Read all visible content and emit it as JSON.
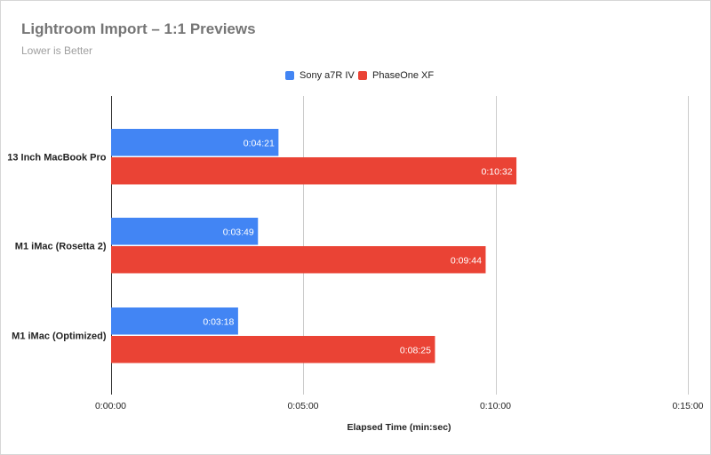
{
  "chart_data": {
    "type": "bar",
    "orientation": "horizontal",
    "title": "Lightroom Import – 1:1 Previews",
    "subtitle": "Lower is Better",
    "xlabel": "Elapsed Time (min:sec)",
    "ylabel": "",
    "categories": [
      "13 Inch MacBook Pro",
      "M1 iMac (Rosetta 2)",
      "M1 iMac (Optimized)"
    ],
    "series": [
      {
        "name": "Sony a7R IV",
        "color": "#4285f4",
        "values_seconds": [
          261,
          229,
          198
        ],
        "labels": [
          "0:04:21",
          "0:03:49",
          "0:03:18"
        ]
      },
      {
        "name": "PhaseOne XF",
        "color": "#ea4335",
        "values_seconds": [
          632,
          584,
          505
        ],
        "labels": [
          "0:10:32",
          "0:09:44",
          "0:08:25"
        ]
      }
    ],
    "x_range_seconds": [
      0,
      900
    ],
    "x_ticks_seconds": [
      0,
      300,
      600,
      900
    ],
    "x_tick_labels": [
      "0:00:00",
      "0:05:00",
      "0:10:00",
      "0:15:00"
    ],
    "grid": "vertical",
    "legend_position": "top"
  }
}
